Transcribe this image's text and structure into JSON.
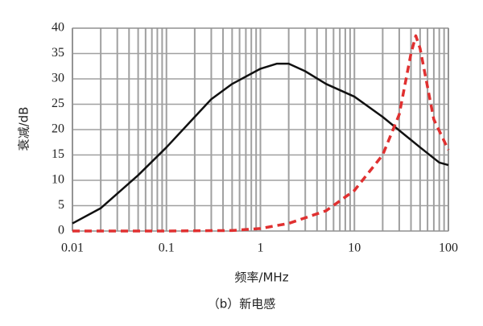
{
  "chart_data": {
    "type": "line",
    "caption": "（b）新电感",
    "xlabel": "频率/MHz",
    "ylabel": "衰减/dB",
    "xscale": "log",
    "xlim": [
      0.01,
      100
    ],
    "xticks": [
      0.01,
      0.1,
      1,
      10,
      100
    ],
    "xminorticks": [
      0.02,
      0.03,
      0.04,
      0.05,
      0.06,
      0.07,
      0.08,
      0.09,
      0.2,
      0.3,
      0.4,
      0.5,
      0.6,
      0.7,
      0.8,
      0.9,
      2,
      3,
      4,
      5,
      6,
      7,
      8,
      9,
      20,
      30,
      40,
      50,
      60,
      70,
      80,
      90
    ],
    "ylim": [
      0,
      40
    ],
    "yticks": [
      0,
      5,
      10,
      15,
      20,
      25,
      30,
      35,
      40
    ],
    "grid": true,
    "series": [
      {
        "color": "#111111",
        "dash": false,
        "x": [
          0.01,
          0.02,
          0.05,
          0.1,
          0.2,
          0.3,
          0.5,
          1,
          1.5,
          2,
          3,
          5,
          10,
          20,
          50,
          80,
          100
        ],
        "values": [
          1.5,
          4.5,
          11,
          16.5,
          22.5,
          26,
          29,
          32,
          33,
          33,
          31.5,
          29,
          26.5,
          22.5,
          16.5,
          13.5,
          13
        ]
      },
      {
        "color": "#e03030",
        "dash": true,
        "x": [
          0.01,
          0.1,
          0.5,
          1,
          2,
          5,
          10,
          20,
          30,
          40,
          45,
          50,
          70,
          100
        ],
        "values": [
          0,
          0,
          0.1,
          0.5,
          1.5,
          4,
          8,
          15,
          23,
          35,
          38.5,
          36,
          22,
          16
        ]
      }
    ]
  }
}
